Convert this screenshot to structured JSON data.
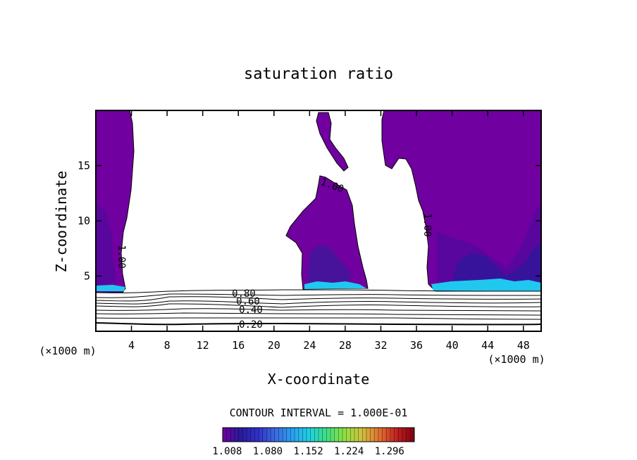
{
  "chart_data": {
    "type": "heatmap",
    "title": "saturation ratio",
    "xlabel": "X-coordinate",
    "ylabel": "Z-coordinate",
    "x_unit": "(×1000 m)",
    "y_unit": "(×1000 m)",
    "xlim": [
      0,
      50
    ],
    "ylim": [
      0,
      20
    ],
    "x_ticks": [
      4,
      8,
      12,
      16,
      20,
      24,
      28,
      32,
      36,
      40,
      44,
      48
    ],
    "y_ticks": [
      5,
      10,
      15
    ],
    "contour_interval_label": "CONTOUR INTERVAL = 1.000E-01",
    "contour_labels": [
      {
        "text": "1.00",
        "x": 2.9,
        "z": 7.0
      },
      {
        "text": "1.00",
        "x": 26.5,
        "z": 13.0
      },
      {
        "text": "1.00",
        "x": 37.2,
        "z": 10.0
      },
      {
        "text": "0.80",
        "x": 16.3,
        "z": 3.3
      },
      {
        "text": "0.60",
        "x": 17.4,
        "z": 2.6
      },
      {
        "text": "0.40",
        "x": 17.3,
        "z": 1.9
      },
      {
        "text": "0.20",
        "x": 17.0,
        "z": 0.6
      }
    ],
    "contour_levels": [
      0.1,
      0.2,
      0.3,
      0.4,
      0.5,
      0.6,
      0.7,
      0.8,
      0.9,
      1.0
    ],
    "colorbar": {
      "min": 1.0,
      "max": 1.34,
      "tick_values": [
        1.008,
        1.08,
        1.152,
        1.224,
        1.296
      ],
      "tick_labels": [
        "1.008",
        "1.080",
        "1.152",
        "1.224",
        "1.296"
      ],
      "colors": [
        "#7000a0",
        "#2a1a9a",
        "#3030c8",
        "#3a6ae0",
        "#2aa0f0",
        "#20d0e0",
        "#40e080",
        "#90e040",
        "#d0c040",
        "#e07030",
        "#c02020",
        "#800010"
      ]
    },
    "supersaturated_regions": [
      {
        "name": "left",
        "x_range": [
          0,
          4.3
        ],
        "z_range": [
          3.8,
          20
        ]
      },
      {
        "name": "center",
        "x_range": [
          22.5,
          30.5
        ],
        "z_range": [
          3.9,
          14
        ]
      },
      {
        "name": "upper-center",
        "x_range": [
          24.8,
          28.3
        ],
        "z_range": [
          14.5,
          20
        ]
      },
      {
        "name": "right",
        "x_range": [
          32.2,
          50
        ],
        "z_range": [
          3.8,
          20
        ]
      }
    ],
    "grid": false,
    "legend": "bottom-center colorbar"
  }
}
